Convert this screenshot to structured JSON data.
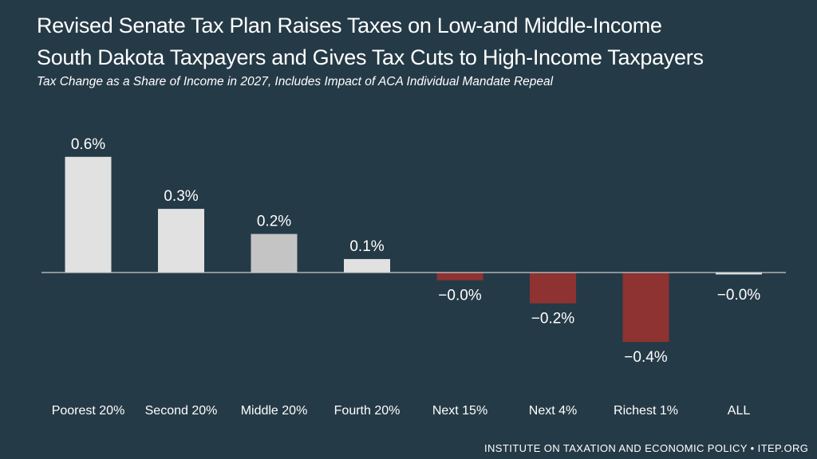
{
  "chart_data": {
    "type": "bar",
    "title_lines": [
      "Revised Senate Tax Plan Raises Taxes on Low-and Middle-Income",
      "South Dakota Taxpayers and Gives Tax Cuts to High-Income Taxpayers"
    ],
    "subtitle": "Tax Change as a Share of Income in 2027, Includes Impact of ACA Individual Mandate Repeal",
    "categories": [
      "Poorest 20%",
      "Second 20%",
      "Middle 20%",
      "Fourth 20%",
      "Next 15%",
      "Next 4%",
      "Richest 1%",
      "ALL"
    ],
    "values": [
      0.6,
      0.33,
      0.2,
      0.07,
      -0.04,
      -0.16,
      -0.36,
      -0.01
    ],
    "data_labels": [
      "0.6%",
      "0.3%",
      "0.2%",
      "0.1%",
      "−0.0%",
      "−0.2%",
      "−0.4%",
      "−0.0%"
    ],
    "xlabel": "",
    "ylabel": "",
    "ylim": [
      -0.4,
      0.6
    ],
    "grid": false
  },
  "colors": {
    "background": "#253a47",
    "positive_bar": "#e1e1e1",
    "highlight_bar": "#c4c4c4",
    "negative_bar": "#8e3232",
    "baseline": "#c9c9c9",
    "text": "#ffffff"
  },
  "highlight_index": 2,
  "footer": "INSTITUTE ON TAXATION AND ECONOMIC POLICY • ITEP.ORG"
}
